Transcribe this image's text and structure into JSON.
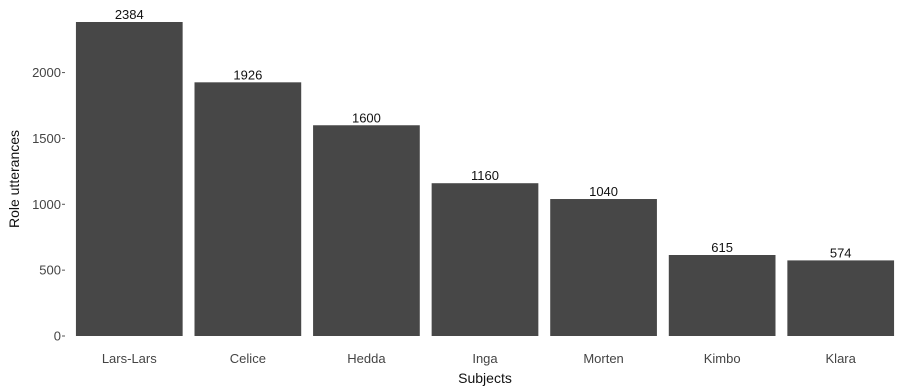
{
  "chart_data": {
    "type": "bar",
    "categories": [
      "Lars-Lars",
      "Celice",
      "Hedda",
      "Inga",
      "Morten",
      "Kimbo",
      "Klara"
    ],
    "values": [
      2384,
      1926,
      1600,
      1160,
      1040,
      615,
      574
    ],
    "xlabel": "Subjects",
    "ylabel": "Role utterances",
    "ylim": [
      0,
      2384
    ],
    "yticks": [
      0,
      500,
      1000,
      1500,
      2000
    ],
    "grid": false,
    "bar_color": "#474747"
  }
}
